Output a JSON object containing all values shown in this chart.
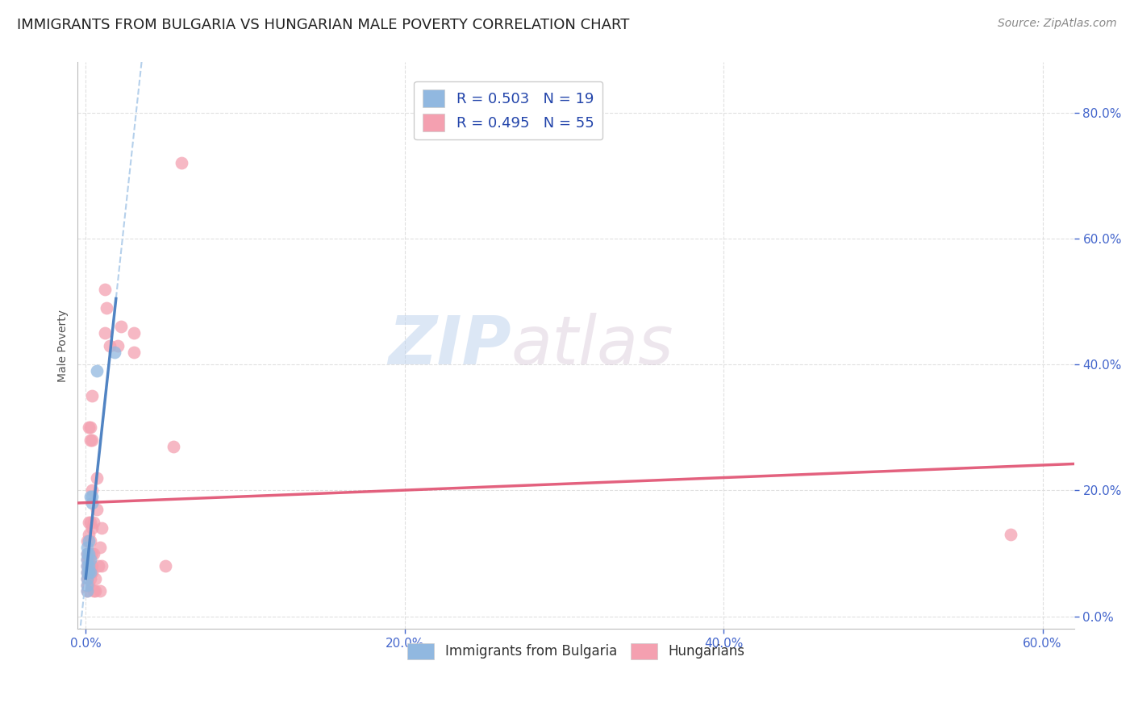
{
  "title": "IMMIGRANTS FROM BULGARIA VS HUNGARIAN MALE POVERTY CORRELATION CHART",
  "source": "Source: ZipAtlas.com",
  "xlim": [
    -0.005,
    0.62
  ],
  "ylim": [
    -0.02,
    0.88
  ],
  "ylabel": "Male Poverty",
  "legend_entries": [
    {
      "label": "R = 0.503   N = 19",
      "color": "#aac4e8"
    },
    {
      "label": "R = 0.495   N = 55",
      "color": "#f4a8b8"
    }
  ],
  "legend_bottom": [
    "Immigrants from Bulgaria",
    "Hungarians"
  ],
  "blue_scatter": [
    [
      0.001,
      0.04
    ],
    [
      0.001,
      0.05
    ],
    [
      0.001,
      0.06
    ],
    [
      0.001,
      0.07
    ],
    [
      0.001,
      0.08
    ],
    [
      0.001,
      0.09
    ],
    [
      0.001,
      0.1
    ],
    [
      0.001,
      0.11
    ],
    [
      0.002,
      0.07
    ],
    [
      0.002,
      0.08
    ],
    [
      0.002,
      0.1
    ],
    [
      0.002,
      0.12
    ],
    [
      0.003,
      0.07
    ],
    [
      0.003,
      0.09
    ],
    [
      0.003,
      0.19
    ],
    [
      0.004,
      0.18
    ],
    [
      0.004,
      0.19
    ],
    [
      0.007,
      0.39
    ],
    [
      0.018,
      0.42
    ]
  ],
  "pink_scatter": [
    [
      0.001,
      0.04
    ],
    [
      0.001,
      0.05
    ],
    [
      0.001,
      0.06
    ],
    [
      0.001,
      0.07
    ],
    [
      0.001,
      0.08
    ],
    [
      0.001,
      0.09
    ],
    [
      0.001,
      0.1
    ],
    [
      0.001,
      0.12
    ],
    [
      0.002,
      0.05
    ],
    [
      0.002,
      0.07
    ],
    [
      0.002,
      0.08
    ],
    [
      0.002,
      0.09
    ],
    [
      0.002,
      0.1
    ],
    [
      0.002,
      0.13
    ],
    [
      0.002,
      0.15
    ],
    [
      0.002,
      0.3
    ],
    [
      0.003,
      0.06
    ],
    [
      0.003,
      0.07
    ],
    [
      0.003,
      0.08
    ],
    [
      0.003,
      0.1
    ],
    [
      0.003,
      0.12
    ],
    [
      0.003,
      0.15
    ],
    [
      0.003,
      0.28
    ],
    [
      0.003,
      0.3
    ],
    [
      0.004,
      0.07
    ],
    [
      0.004,
      0.08
    ],
    [
      0.004,
      0.1
    ],
    [
      0.004,
      0.14
    ],
    [
      0.004,
      0.2
    ],
    [
      0.004,
      0.28
    ],
    [
      0.004,
      0.35
    ],
    [
      0.005,
      0.04
    ],
    [
      0.005,
      0.1
    ],
    [
      0.005,
      0.15
    ],
    [
      0.006,
      0.04
    ],
    [
      0.006,
      0.06
    ],
    [
      0.007,
      0.17
    ],
    [
      0.007,
      0.22
    ],
    [
      0.008,
      0.08
    ],
    [
      0.009,
      0.04
    ],
    [
      0.009,
      0.11
    ],
    [
      0.01,
      0.08
    ],
    [
      0.01,
      0.14
    ],
    [
      0.012,
      0.45
    ],
    [
      0.012,
      0.52
    ],
    [
      0.013,
      0.49
    ],
    [
      0.015,
      0.43
    ],
    [
      0.02,
      0.43
    ],
    [
      0.022,
      0.46
    ],
    [
      0.03,
      0.42
    ],
    [
      0.03,
      0.45
    ],
    [
      0.05,
      0.08
    ],
    [
      0.055,
      0.27
    ],
    [
      0.06,
      0.72
    ],
    [
      0.58,
      0.13
    ]
  ],
  "blue_color": "#91b8e0",
  "pink_color": "#f4a0b0",
  "blue_line_color": "#4a7fc1",
  "pink_line_color": "#e05070",
  "blue_dash_color": "#a8c8e8",
  "watermark_zip": "ZIP",
  "watermark_atlas": "atlas",
  "background_color": "#ffffff",
  "grid_color": "#dddddd",
  "tick_color": "#4466cc",
  "title_color": "#222222",
  "title_fontsize": 13,
  "source_fontsize": 10,
  "ylabel_fontsize": 10
}
